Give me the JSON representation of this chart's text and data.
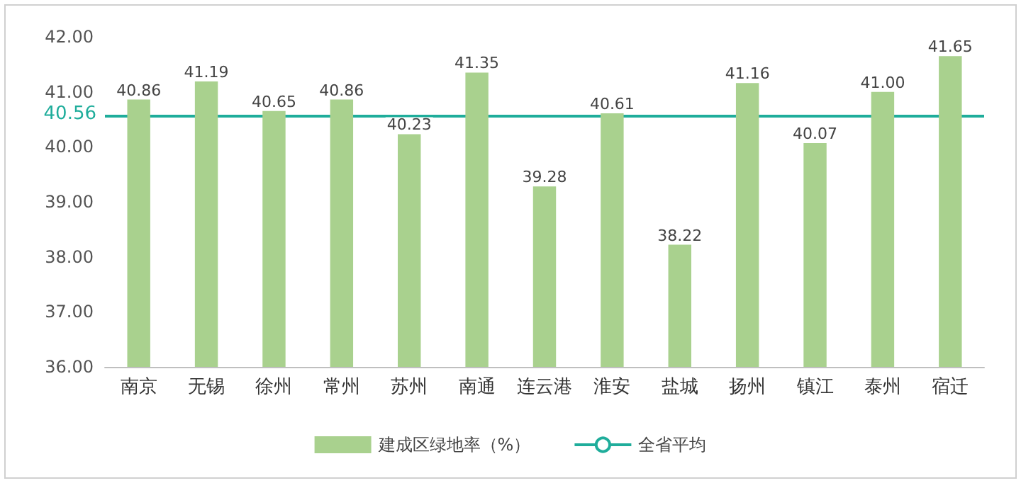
{
  "chart_data": {
    "type": "bar",
    "categories": [
      "南京",
      "无锡",
      "徐州",
      "常州",
      "苏州",
      "南通",
      "连云港",
      "淮安",
      "盐城",
      "扬州",
      "镇江",
      "泰州",
      "宿迁"
    ],
    "series": [
      {
        "name": "建成区绿地率（%）",
        "color": "#a9d18e",
        "values": [
          40.86,
          41.19,
          40.65,
          40.86,
          40.23,
          41.35,
          39.28,
          40.61,
          38.22,
          41.16,
          40.07,
          41.0,
          41.65
        ],
        "value_labels": [
          "40.86",
          "41.19",
          "40.65",
          "40.86",
          "40.23",
          "41.35",
          "39.28",
          "40.61",
          "38.22",
          "41.16",
          "40.07",
          "41.00",
          "41.65"
        ]
      }
    ],
    "annotations": [
      "40.56"
    ],
    "ylim": [
      36,
      42
    ],
    "yticks": [
      {
        "value": 36,
        "label": "36.00"
      },
      {
        "value": 37,
        "label": "37.00"
      },
      {
        "value": 38,
        "label": "38.00"
      },
      {
        "value": 39,
        "label": "39.00"
      },
      {
        "value": 40,
        "label": "40.00"
      },
      {
        "value": 41,
        "label": "41.00"
      },
      {
        "value": 42,
        "label": "42.00"
      }
    ],
    "ref_lines": [
      {
        "axis": "y",
        "value": 40.56,
        "label": "全省平均",
        "color": "#1fad9b"
      }
    ],
    "grid": false,
    "legend": "bottom"
  }
}
